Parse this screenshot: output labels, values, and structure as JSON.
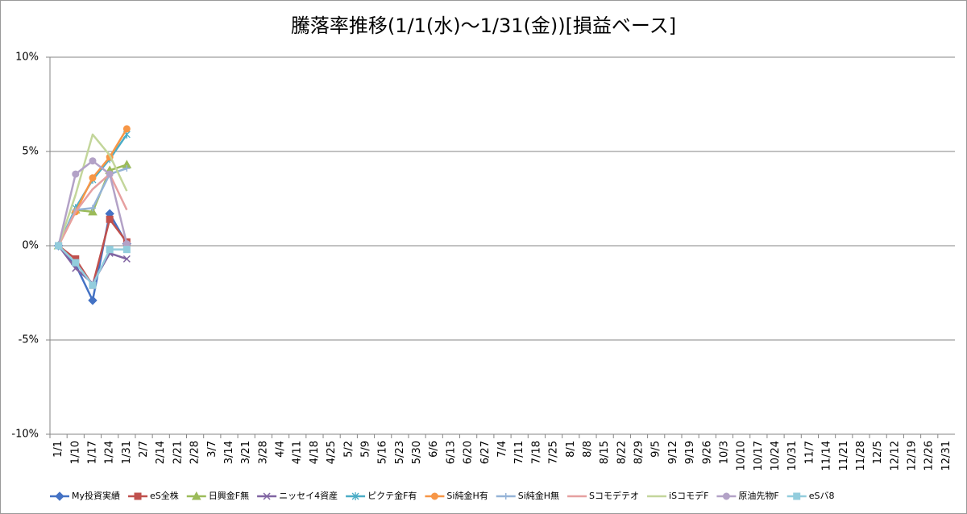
{
  "chart_data": {
    "type": "line",
    "title": "騰落率推移(1/1(水)～1/31(金))[損益ベース]",
    "categories": [
      "1/1",
      "1/10",
      "1/17",
      "1/24",
      "1/31",
      "2/7",
      "2/14",
      "2/21",
      "2/28",
      "3/7",
      "3/14",
      "3/21",
      "3/28",
      "4/4",
      "4/11",
      "4/18",
      "4/25",
      "5/2",
      "5/9",
      "5/16",
      "5/23",
      "5/30",
      "6/6",
      "6/13",
      "6/20",
      "6/27",
      "7/4",
      "7/11",
      "7/18",
      "7/25",
      "8/1",
      "8/8",
      "8/15",
      "8/22",
      "8/29",
      "9/5",
      "9/12",
      "9/19",
      "9/26",
      "10/3",
      "10/10",
      "10/17",
      "10/24",
      "10/31",
      "11/7",
      "11/14",
      "11/21",
      "11/28",
      "12/5",
      "12/12",
      "12/19",
      "12/26",
      "12/31"
    ],
    "ylim": [
      -10,
      10
    ],
    "yticks": [
      {
        "value": -10,
        "label": "-10%"
      },
      {
        "value": -5,
        "label": "-5%"
      },
      {
        "value": 0,
        "label": "0%"
      },
      {
        "value": 5,
        "label": "5%"
      },
      {
        "value": 10,
        "label": "10%"
      }
    ],
    "grid": true,
    "legend": "bottom",
    "series": [
      {
        "name": "My投資実績",
        "color": "#4472c4",
        "marker": "diamond",
        "values": [
          0,
          -1.0,
          -2.9,
          1.7,
          0.1,
          null,
          null,
          null,
          null,
          null,
          null,
          null,
          null,
          null,
          null,
          null,
          null,
          null,
          null,
          null,
          null,
          null,
          null,
          null,
          null,
          null,
          null,
          null,
          null,
          null,
          null,
          null,
          null,
          null,
          null,
          null,
          null,
          null,
          null,
          null,
          null,
          null,
          null,
          null,
          null,
          null,
          null,
          null,
          null,
          null,
          null,
          null,
          null
        ]
      },
      {
        "name": "eS全株",
        "color": "#c0504d",
        "marker": "square",
        "values": [
          0,
          -0.7,
          -2.1,
          1.4,
          0.2,
          null,
          null,
          null,
          null,
          null,
          null,
          null,
          null,
          null,
          null,
          null,
          null,
          null,
          null,
          null,
          null,
          null,
          null,
          null,
          null,
          null,
          null,
          null,
          null,
          null,
          null,
          null,
          null,
          null,
          null,
          null,
          null,
          null,
          null,
          null,
          null,
          null,
          null,
          null,
          null,
          null,
          null,
          null,
          null,
          null,
          null,
          null,
          null
        ]
      },
      {
        "name": "日興金F無",
        "color": "#9bbb59",
        "marker": "triangle",
        "values": [
          0,
          1.9,
          1.8,
          4.0,
          4.3,
          null,
          null,
          null,
          null,
          null,
          null,
          null,
          null,
          null,
          null,
          null,
          null,
          null,
          null,
          null,
          null,
          null,
          null,
          null,
          null,
          null,
          null,
          null,
          null,
          null,
          null,
          null,
          null,
          null,
          null,
          null,
          null,
          null,
          null,
          null,
          null,
          null,
          null,
          null,
          null,
          null,
          null,
          null,
          null,
          null,
          null,
          null,
          null
        ]
      },
      {
        "name": "ニッセイ4資産",
        "color": "#8064a2",
        "marker": "x",
        "values": [
          0,
          -1.2,
          -2.0,
          -0.4,
          -0.7,
          null,
          null,
          null,
          null,
          null,
          null,
          null,
          null,
          null,
          null,
          null,
          null,
          null,
          null,
          null,
          null,
          null,
          null,
          null,
          null,
          null,
          null,
          null,
          null,
          null,
          null,
          null,
          null,
          null,
          null,
          null,
          null,
          null,
          null,
          null,
          null,
          null,
          null,
          null,
          null,
          null,
          null,
          null,
          null,
          null,
          null,
          null,
          null
        ]
      },
      {
        "name": "ピクテ金F有",
        "color": "#4bacc6",
        "marker": "star",
        "values": [
          0,
          2.0,
          3.5,
          4.6,
          5.9,
          null,
          null,
          null,
          null,
          null,
          null,
          null,
          null,
          null,
          null,
          null,
          null,
          null,
          null,
          null,
          null,
          null,
          null,
          null,
          null,
          null,
          null,
          null,
          null,
          null,
          null,
          null,
          null,
          null,
          null,
          null,
          null,
          null,
          null,
          null,
          null,
          null,
          null,
          null,
          null,
          null,
          null,
          null,
          null,
          null,
          null,
          null,
          null
        ]
      },
      {
        "name": "Si純金H有",
        "color": "#f79646",
        "marker": "circle",
        "values": [
          0,
          1.8,
          3.6,
          4.7,
          6.2,
          null,
          null,
          null,
          null,
          null,
          null,
          null,
          null,
          null,
          null,
          null,
          null,
          null,
          null,
          null,
          null,
          null,
          null,
          null,
          null,
          null,
          null,
          null,
          null,
          null,
          null,
          null,
          null,
          null,
          null,
          null,
          null,
          null,
          null,
          null,
          null,
          null,
          null,
          null,
          null,
          null,
          null,
          null,
          null,
          null,
          null,
          null,
          null
        ]
      },
      {
        "name": "Si純金H無",
        "color": "#95b3d7",
        "marker": "plus",
        "values": [
          0,
          1.9,
          2.0,
          3.8,
          4.1,
          null,
          null,
          null,
          null,
          null,
          null,
          null,
          null,
          null,
          null,
          null,
          null,
          null,
          null,
          null,
          null,
          null,
          null,
          null,
          null,
          null,
          null,
          null,
          null,
          null,
          null,
          null,
          null,
          null,
          null,
          null,
          null,
          null,
          null,
          null,
          null,
          null,
          null,
          null,
          null,
          null,
          null,
          null,
          null,
          null,
          null,
          null,
          null
        ]
      },
      {
        "name": "Sコモデテオ",
        "color": "#e6a0a0",
        "marker": "none",
        "values": [
          0,
          1.8,
          3.0,
          3.8,
          1.9,
          null,
          null,
          null,
          null,
          null,
          null,
          null,
          null,
          null,
          null,
          null,
          null,
          null,
          null,
          null,
          null,
          null,
          null,
          null,
          null,
          null,
          null,
          null,
          null,
          null,
          null,
          null,
          null,
          null,
          null,
          null,
          null,
          null,
          null,
          null,
          null,
          null,
          null,
          null,
          null,
          null,
          null,
          null,
          null,
          null,
          null,
          null,
          null
        ]
      },
      {
        "name": "iSコモデF",
        "color": "#c3d69b",
        "marker": "none",
        "values": [
          0,
          2.7,
          5.9,
          4.8,
          2.9,
          null,
          null,
          null,
          null,
          null,
          null,
          null,
          null,
          null,
          null,
          null,
          null,
          null,
          null,
          null,
          null,
          null,
          null,
          null,
          null,
          null,
          null,
          null,
          null,
          null,
          null,
          null,
          null,
          null,
          null,
          null,
          null,
          null,
          null,
          null,
          null,
          null,
          null,
          null,
          null,
          null,
          null,
          null,
          null,
          null,
          null,
          null,
          null
        ]
      },
      {
        "name": "原油先物F",
        "color": "#b3a2c7",
        "marker": "circle",
        "values": [
          0,
          3.8,
          4.5,
          3.8,
          0.1,
          null,
          null,
          null,
          null,
          null,
          null,
          null,
          null,
          null,
          null,
          null,
          null,
          null,
          null,
          null,
          null,
          null,
          null,
          null,
          null,
          null,
          null,
          null,
          null,
          null,
          null,
          null,
          null,
          null,
          null,
          null,
          null,
          null,
          null,
          null,
          null,
          null,
          null,
          null,
          null,
          null,
          null,
          null,
          null,
          null,
          null,
          null,
          null
        ]
      },
      {
        "name": "eSバ8",
        "color": "#93cddd",
        "marker": "square",
        "values": [
          0,
          -0.9,
          -2.1,
          -0.2,
          -0.2,
          null,
          null,
          null,
          null,
          null,
          null,
          null,
          null,
          null,
          null,
          null,
          null,
          null,
          null,
          null,
          null,
          null,
          null,
          null,
          null,
          null,
          null,
          null,
          null,
          null,
          null,
          null,
          null,
          null,
          null,
          null,
          null,
          null,
          null,
          null,
          null,
          null,
          null,
          null,
          null,
          null,
          null,
          null,
          null,
          null,
          null,
          null,
          null
        ]
      }
    ]
  }
}
